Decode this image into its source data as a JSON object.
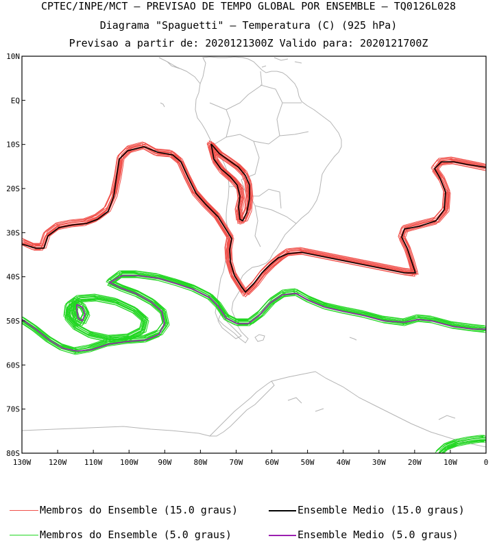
{
  "header": {
    "line1": "CPTEC/INPE/MCT – PREVISAO DE TEMPO GLOBAL POR ENSEMBLE – TQ0126L028",
    "line2": "Diagrama \"Spaguetti\" – Temperatura (C) (925 hPa)",
    "line3": "Previsao a partir de: 2020121300Z  Valido para: 2020121700Z"
  },
  "map": {
    "lat_labels": [
      "10N",
      "EQ",
      "10S",
      "20S",
      "30S",
      "40S",
      "50S",
      "60S",
      "70S",
      "80S"
    ],
    "lon_labels": [
      "130W",
      "120W",
      "110W",
      "100W",
      "90W",
      "80W",
      "70W",
      "60W",
      "50W",
      "40W",
      "30W",
      "20W",
      "10W",
      "0"
    ],
    "lat_range": [
      -80,
      10
    ],
    "lon_range": [
      -130,
      0
    ]
  },
  "colors": {
    "members_15": "#f0504a",
    "mean_15": "#000000",
    "members_5": "#22d622",
    "mean_5": "#9b1fb0",
    "coast": "#b4b4b4"
  },
  "legend": {
    "members_15": "Membros do Ensemble (15.0 graus)",
    "mean_15": "Ensemble Medio (15.0 graus)",
    "members_5": "Membros do Ensemble (5.0 graus)",
    "mean_5": "Ensemble Medio (5.0 graus)"
  }
}
